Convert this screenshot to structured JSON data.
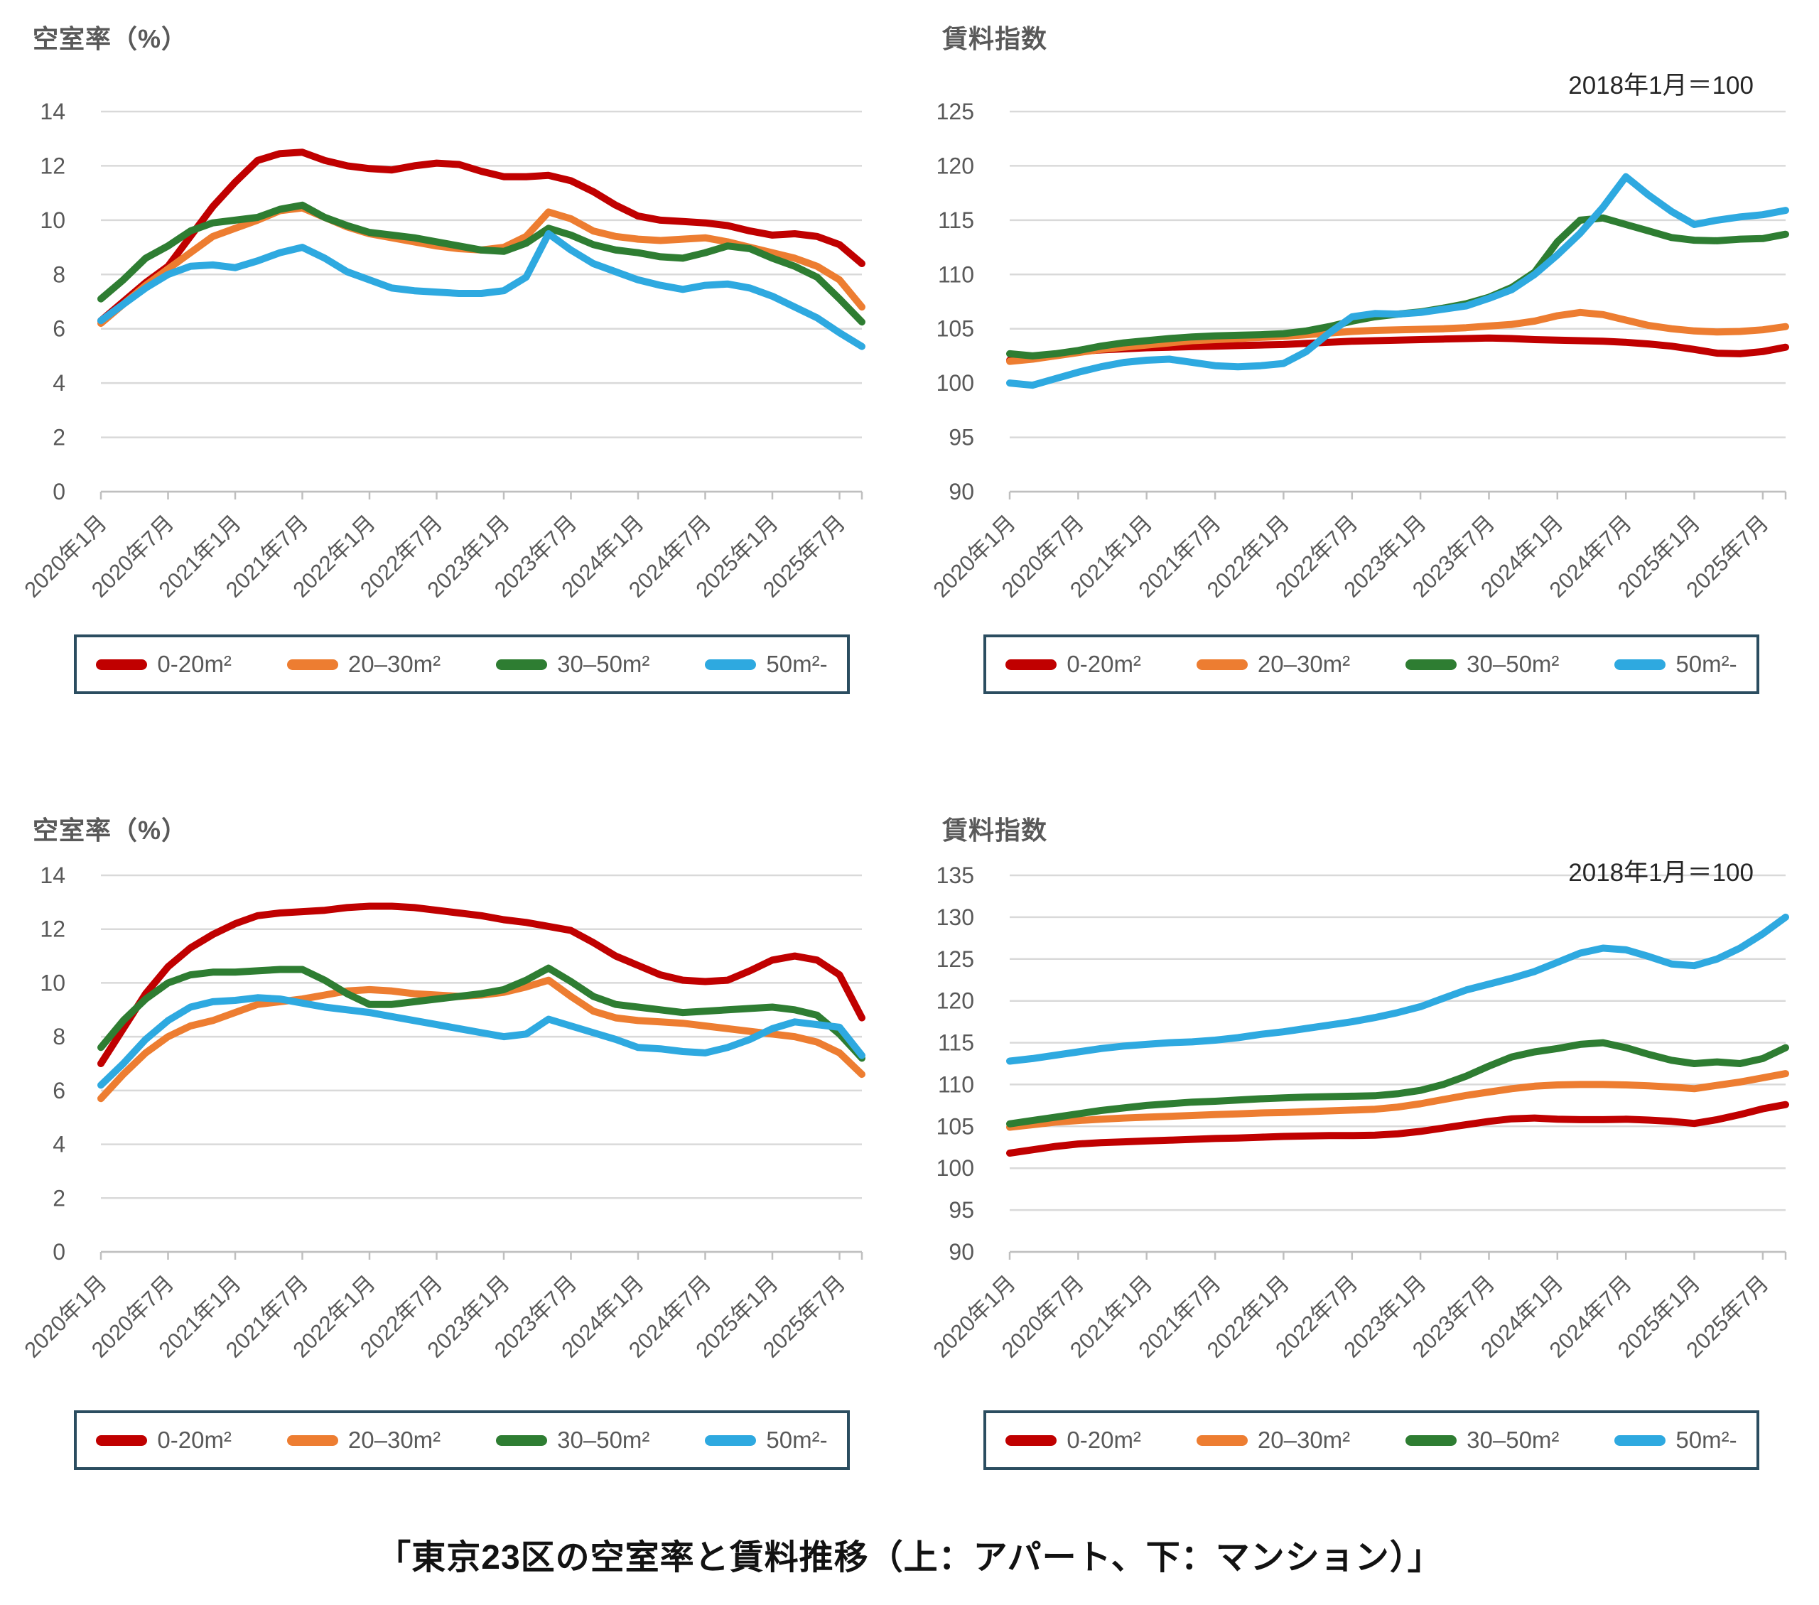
{
  "caption": {
    "text": "「東京23区の空室率と賃料推移（上：アパート、下：マンション）」"
  },
  "legend": {
    "items": [
      {
        "label": "0-20m²",
        "color": "#C00000"
      },
      {
        "label": "20–30m²",
        "color": "#ED7D31"
      },
      {
        "label": "30–50m²",
        "color": "#2E7D32"
      },
      {
        "label": "50m²-",
        "color": "#2EA9E0"
      }
    ]
  },
  "colors": {
    "grid": "#D9D9D9",
    "axis": "#BFBFBF",
    "tick": "#BFBFBF",
    "axis_text": "#595959",
    "legend_border": "#2B4D60"
  },
  "chart_data": [
    {
      "id": "apartment-vacancy",
      "type": "line",
      "title": "空室率（%）",
      "subtitle": "",
      "ylabel": "空室率（%）",
      "ylim": [
        0,
        14
      ],
      "yticks": [
        0,
        2,
        4,
        6,
        8,
        10,
        12,
        14
      ],
      "grid": true,
      "legend_position": "bottom",
      "x_total_months": 68,
      "sample_step_months": 2,
      "tick_step_months": 6,
      "categories": [
        "2020年1月",
        "2020年7月",
        "2021年1月",
        "2021年7月",
        "2022年1月",
        "2022年7月",
        "2023年1月",
        "2023年7月",
        "2024年1月",
        "2024年7月",
        "2025年1月",
        "2025年7月"
      ],
      "series": [
        {
          "name": "0-20m²",
          "color": "#C00000",
          "values": [
            6.3,
            7.0,
            7.7,
            8.3,
            9.4,
            10.5,
            11.4,
            12.2,
            12.45,
            12.5,
            12.2,
            12.0,
            11.9,
            11.85,
            12.0,
            12.1,
            12.05,
            11.8,
            11.6,
            11.6,
            11.65,
            11.45,
            11.05,
            10.55,
            10.15,
            10.0,
            9.95,
            9.9,
            9.8,
            9.6,
            9.45,
            9.5,
            9.4,
            9.1,
            8.4
          ]
        },
        {
          "name": "20–30m²",
          "color": "#ED7D31",
          "values": [
            6.2,
            6.9,
            7.6,
            8.2,
            8.8,
            9.4,
            9.7,
            10.0,
            10.35,
            10.45,
            10.1,
            9.75,
            9.5,
            9.35,
            9.2,
            9.05,
            8.95,
            8.9,
            9.0,
            9.4,
            10.3,
            10.05,
            9.6,
            9.4,
            9.3,
            9.25,
            9.3,
            9.35,
            9.2,
            9.0,
            8.8,
            8.6,
            8.3,
            7.8,
            6.8
          ]
        },
        {
          "name": "30–50m²",
          "color": "#2E7D32",
          "values": [
            7.1,
            7.8,
            8.6,
            9.05,
            9.6,
            9.9,
            10.0,
            10.1,
            10.4,
            10.55,
            10.1,
            9.8,
            9.55,
            9.45,
            9.35,
            9.2,
            9.05,
            8.9,
            8.85,
            9.15,
            9.7,
            9.45,
            9.1,
            8.9,
            8.8,
            8.65,
            8.6,
            8.8,
            9.05,
            8.95,
            8.6,
            8.3,
            7.9,
            7.1,
            6.25
          ]
        },
        {
          "name": "50m²-",
          "color": "#2EA9E0",
          "values": [
            6.3,
            6.9,
            7.5,
            8.0,
            8.3,
            8.35,
            8.25,
            8.5,
            8.8,
            9.0,
            8.6,
            8.1,
            7.8,
            7.5,
            7.4,
            7.35,
            7.3,
            7.3,
            7.4,
            7.9,
            9.5,
            8.9,
            8.4,
            8.1,
            7.8,
            7.6,
            7.45,
            7.6,
            7.65,
            7.5,
            7.2,
            6.8,
            6.4,
            5.85,
            5.35
          ]
        }
      ]
    },
    {
      "id": "apartment-rent",
      "type": "line",
      "title": "賃料指数",
      "subtitle": "2018年1月＝100",
      "ylabel": "賃料指数",
      "ylim": [
        90,
        125
      ],
      "yticks": [
        90,
        95,
        100,
        105,
        110,
        115,
        120,
        125
      ],
      "grid": true,
      "legend_position": "bottom",
      "x_total_months": 68,
      "sample_step_months": 2,
      "tick_step_months": 6,
      "categories": [
        "2020年1月",
        "2020年7月",
        "2021年1月",
        "2021年7月",
        "2022年1月",
        "2022年7月",
        "2023年1月",
        "2023年7月",
        "2024年1月",
        "2024年7月",
        "2025年1月",
        "2025年7月"
      ],
      "series": [
        {
          "name": "0-20m²",
          "color": "#C00000",
          "values": [
            102.1,
            102.3,
            102.6,
            102.9,
            103.05,
            103.15,
            103.25,
            103.3,
            103.35,
            103.4,
            103.45,
            103.5,
            103.55,
            103.65,
            103.75,
            103.85,
            103.9,
            103.95,
            104.0,
            104.05,
            104.1,
            104.15,
            104.1,
            104.0,
            103.95,
            103.9,
            103.85,
            103.75,
            103.6,
            103.4,
            103.1,
            102.75,
            102.7,
            102.9,
            103.3
          ]
        },
        {
          "name": "20–30m²",
          "color": "#ED7D31",
          "values": [
            102.0,
            102.2,
            102.5,
            102.8,
            103.1,
            103.3,
            103.5,
            103.7,
            103.9,
            104.0,
            104.1,
            104.2,
            104.3,
            104.45,
            104.6,
            104.75,
            104.85,
            104.9,
            104.95,
            105.0,
            105.1,
            105.25,
            105.4,
            105.7,
            106.2,
            106.5,
            106.3,
            105.8,
            105.3,
            105.0,
            104.8,
            104.7,
            104.75,
            104.9,
            105.2
          ]
        },
        {
          "name": "30–50m²",
          "color": "#2E7D32",
          "values": [
            102.7,
            102.5,
            102.7,
            103.0,
            103.4,
            103.7,
            103.9,
            104.1,
            104.25,
            104.35,
            104.4,
            104.45,
            104.55,
            104.8,
            105.2,
            105.7,
            106.1,
            106.35,
            106.55,
            106.9,
            107.3,
            107.9,
            108.8,
            110.2,
            113.0,
            115.0,
            115.2,
            114.6,
            114.0,
            113.4,
            113.15,
            113.1,
            113.25,
            113.3,
            113.7
          ]
        },
        {
          "name": "50m²-",
          "color": "#2EA9E0",
          "values": [
            100.0,
            99.8,
            100.4,
            101.0,
            101.5,
            101.9,
            102.1,
            102.2,
            101.9,
            101.6,
            101.5,
            101.6,
            101.8,
            102.9,
            104.6,
            106.1,
            106.4,
            106.35,
            106.5,
            106.8,
            107.1,
            107.8,
            108.6,
            110.0,
            111.8,
            113.8,
            116.2,
            119.0,
            117.3,
            115.8,
            114.6,
            115.0,
            115.3,
            115.5,
            115.9
          ]
        }
      ]
    },
    {
      "id": "mansion-vacancy",
      "type": "line",
      "title": "空室率（%）",
      "subtitle": "",
      "ylabel": "空室率（%）",
      "ylim": [
        0,
        14
      ],
      "yticks": [
        0,
        2,
        4,
        6,
        8,
        10,
        12,
        14
      ],
      "grid": true,
      "legend_position": "bottom",
      "x_total_months": 68,
      "sample_step_months": 2,
      "tick_step_months": 6,
      "categories": [
        "2020年1月",
        "2020年7月",
        "2021年1月",
        "2021年7月",
        "2022年1月",
        "2022年7月",
        "2023年1月",
        "2023年7月",
        "2024年1月",
        "2024年7月",
        "2025年1月",
        "2025年7月"
      ],
      "series": [
        {
          "name": "0-20m²",
          "color": "#C00000",
          "values": [
            7.0,
            8.3,
            9.6,
            10.6,
            11.3,
            11.8,
            12.2,
            12.5,
            12.6,
            12.65,
            12.7,
            12.8,
            12.85,
            12.85,
            12.8,
            12.7,
            12.6,
            12.5,
            12.35,
            12.25,
            12.1,
            11.95,
            11.5,
            11.0,
            10.65,
            10.3,
            10.1,
            10.05,
            10.1,
            10.45,
            10.85,
            11.0,
            10.85,
            10.3,
            8.7
          ]
        },
        {
          "name": "20–30m²",
          "color": "#ED7D31",
          "values": [
            5.7,
            6.6,
            7.4,
            8.0,
            8.4,
            8.6,
            8.9,
            9.2,
            9.3,
            9.4,
            9.55,
            9.7,
            9.75,
            9.7,
            9.6,
            9.55,
            9.5,
            9.55,
            9.65,
            9.85,
            10.1,
            9.5,
            8.95,
            8.7,
            8.6,
            8.55,
            8.5,
            8.4,
            8.3,
            8.2,
            8.1,
            8.0,
            7.8,
            7.4,
            6.6
          ]
        },
        {
          "name": "30–50m²",
          "color": "#2E7D32",
          "values": [
            7.6,
            8.6,
            9.4,
            10.0,
            10.3,
            10.4,
            10.4,
            10.45,
            10.5,
            10.5,
            10.1,
            9.6,
            9.2,
            9.2,
            9.3,
            9.4,
            9.5,
            9.6,
            9.75,
            10.1,
            10.55,
            10.05,
            9.5,
            9.2,
            9.1,
            9.0,
            8.9,
            8.95,
            9.0,
            9.05,
            9.1,
            9.0,
            8.8,
            8.1,
            7.2
          ]
        },
        {
          "name": "50m²-",
          "color": "#2EA9E0",
          "values": [
            6.2,
            7.0,
            7.9,
            8.6,
            9.1,
            9.3,
            9.35,
            9.45,
            9.4,
            9.25,
            9.1,
            9.0,
            8.9,
            8.75,
            8.6,
            8.45,
            8.3,
            8.15,
            8.0,
            8.1,
            8.65,
            8.4,
            8.15,
            7.9,
            7.6,
            7.55,
            7.45,
            7.4,
            7.6,
            7.9,
            8.3,
            8.55,
            8.45,
            8.35,
            7.3
          ]
        }
      ]
    },
    {
      "id": "mansion-rent",
      "type": "line",
      "title": "賃料指数",
      "subtitle": "2018年1月＝100",
      "ylabel": "賃料指数",
      "ylim": [
        90,
        135
      ],
      "yticks": [
        90,
        95,
        100,
        105,
        110,
        115,
        120,
        125,
        130,
        135
      ],
      "grid": true,
      "legend_position": "bottom",
      "x_total_months": 68,
      "sample_step_months": 2,
      "tick_step_months": 6,
      "categories": [
        "2020年1月",
        "2020年7月",
        "2021年1月",
        "2021年7月",
        "2022年1月",
        "2022年7月",
        "2023年1月",
        "2023年7月",
        "2024年1月",
        "2024年7月",
        "2025年1月",
        "2025年7月"
      ],
      "series": [
        {
          "name": "0-20m²",
          "color": "#C00000",
          "values": [
            101.8,
            102.2,
            102.6,
            102.9,
            103.05,
            103.15,
            103.25,
            103.35,
            103.45,
            103.55,
            103.6,
            103.7,
            103.8,
            103.85,
            103.9,
            103.9,
            103.95,
            104.1,
            104.4,
            104.8,
            105.2,
            105.6,
            105.9,
            106.0,
            105.85,
            105.8,
            105.8,
            105.85,
            105.75,
            105.6,
            105.35,
            105.8,
            106.4,
            107.1,
            107.6
          ]
        },
        {
          "name": "20–30m²",
          "color": "#ED7D31",
          "values": [
            104.9,
            105.2,
            105.5,
            105.7,
            105.85,
            106.0,
            106.1,
            106.2,
            106.3,
            106.4,
            106.5,
            106.6,
            106.65,
            106.75,
            106.85,
            106.95,
            107.05,
            107.3,
            107.7,
            108.2,
            108.7,
            109.1,
            109.5,
            109.8,
            109.95,
            110.0,
            110.0,
            109.95,
            109.85,
            109.7,
            109.5,
            109.9,
            110.3,
            110.8,
            111.3
          ]
        },
        {
          "name": "30–50m²",
          "color": "#2E7D32",
          "values": [
            105.3,
            105.7,
            106.1,
            106.5,
            106.9,
            107.2,
            107.5,
            107.7,
            107.9,
            108.0,
            108.15,
            108.3,
            108.4,
            108.5,
            108.55,
            108.6,
            108.65,
            108.9,
            109.3,
            110.0,
            111.0,
            112.2,
            113.3,
            113.9,
            114.3,
            114.8,
            115.0,
            114.4,
            113.6,
            112.9,
            112.5,
            112.7,
            112.5,
            113.1,
            114.4
          ]
        },
        {
          "name": "50m²-",
          "color": "#2EA9E0",
          "values": [
            112.8,
            113.1,
            113.5,
            113.9,
            114.3,
            114.6,
            114.8,
            115.0,
            115.1,
            115.3,
            115.6,
            116.0,
            116.3,
            116.7,
            117.1,
            117.5,
            118.0,
            118.6,
            119.3,
            120.3,
            121.3,
            122.0,
            122.7,
            123.5,
            124.6,
            125.7,
            126.3,
            126.1,
            125.3,
            124.4,
            124.2,
            125.0,
            126.3,
            128.0,
            130.0
          ]
        }
      ]
    }
  ]
}
